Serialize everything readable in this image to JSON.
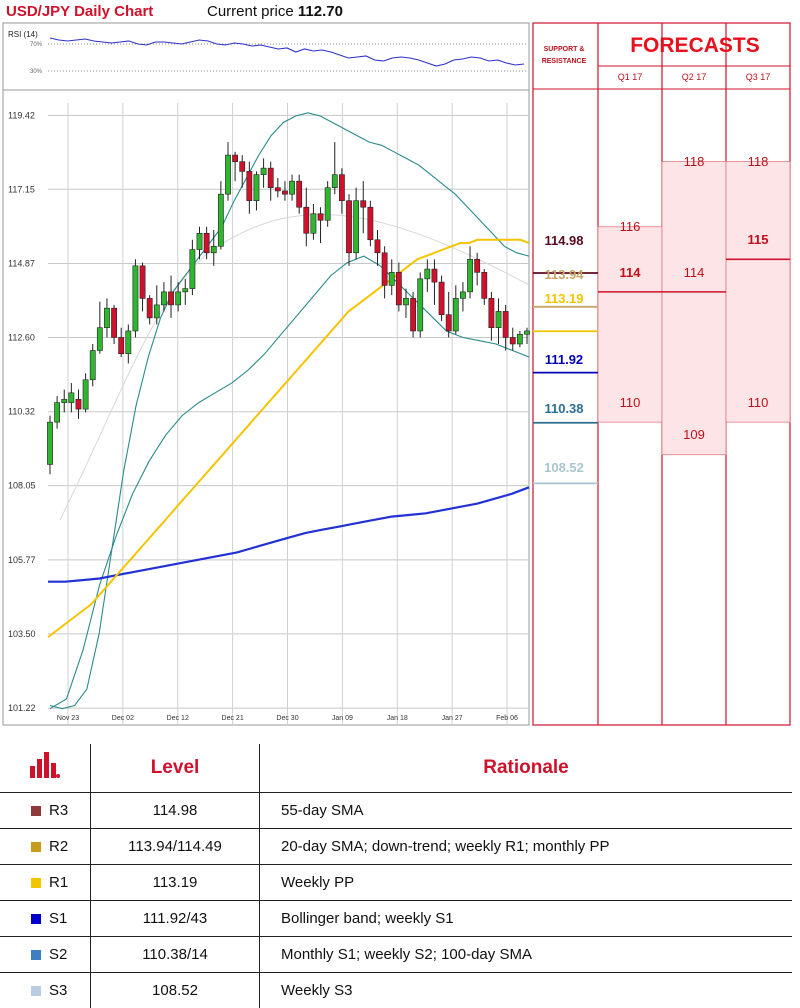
{
  "header": {
    "title": "USD/JPY Daily Chart",
    "price_label": "Current price",
    "price_value": "112.70"
  },
  "rsi": {
    "label": "RSI (14)",
    "upper_label": "70%",
    "lower_label": "30%"
  },
  "forecast": {
    "title": "FORECASTS",
    "sr_title_line1": "SUPPORT &",
    "sr_title_line2": "RESISTANCE",
    "quarters": [
      "Q1 17",
      "Q2 17",
      "Q3 17"
    ]
  },
  "levels": [
    {
      "value": "114.98",
      "color": "#5a0a1e"
    },
    {
      "value": "113.94",
      "color": "#c9a56a"
    },
    {
      "value": "113.19",
      "color": "#f5c400"
    },
    {
      "value": "111.92",
      "color": "#0000b5"
    },
    {
      "value": "110.38",
      "color": "#2b6f8f"
    },
    {
      "value": "108.52",
      "color": "#a9c6cf"
    }
  ],
  "forecast_values": {
    "q1": {
      "high": "116",
      "mid": "114",
      "low": "110"
    },
    "q2": {
      "high": "118",
      "mid": "114",
      "low": "109"
    },
    "q3": {
      "high": "118",
      "mid": "115",
      "low": "110"
    }
  },
  "chart_data": {
    "type": "candlestick",
    "title": "USD/JPY Daily Chart",
    "y_ticks": [
      119.42,
      117.15,
      114.87,
      112.6,
      110.32,
      108.05,
      105.77,
      103.5,
      101.22
    ],
    "ylim": [
      100.7,
      119.8
    ],
    "x_labels": [
      "Nov 23",
      "Dec 02",
      "Dec 12",
      "Dec 21",
      "Dec 30",
      "Jan 09",
      "Jan 18",
      "Jan 27",
      "Feb 06"
    ],
    "grid": true,
    "candles": [
      [
        108.7,
        110.0,
        108.4,
        110.2
      ],
      [
        110.0,
        110.6,
        109.8,
        110.8
      ],
      [
        110.6,
        110.7,
        110.3,
        111.0
      ],
      [
        110.6,
        110.9,
        110.3,
        111.2
      ],
      [
        110.7,
        110.4,
        110.1,
        111.0
      ],
      [
        110.4,
        111.3,
        110.3,
        111.5
      ],
      [
        111.3,
        112.2,
        111.1,
        112.4
      ],
      [
        112.2,
        112.9,
        112.1,
        113.7
      ],
      [
        112.9,
        113.5,
        112.6,
        113.8
      ],
      [
        113.5,
        112.6,
        112.4,
        113.6
      ],
      [
        112.6,
        112.1,
        112.0,
        112.9
      ],
      [
        112.1,
        112.8,
        111.8,
        113.0
      ],
      [
        112.8,
        114.8,
        112.6,
        115.0
      ],
      [
        114.8,
        113.8,
        113.4,
        114.9
      ],
      [
        113.8,
        113.2,
        113.0,
        113.9
      ],
      [
        113.2,
        113.6,
        113.0,
        114.2
      ],
      [
        113.6,
        114.0,
        113.4,
        114.3
      ],
      [
        114.0,
        113.6,
        113.2,
        114.5
      ],
      [
        113.6,
        114.0,
        113.4,
        114.3
      ],
      [
        114.0,
        114.1,
        113.6,
        114.4
      ],
      [
        114.1,
        115.3,
        113.9,
        115.6
      ],
      [
        115.3,
        115.8,
        115.0,
        116.0
      ],
      [
        115.8,
        115.2,
        115.0,
        116.0
      ],
      [
        115.2,
        115.4,
        114.8,
        115.9
      ],
      [
        115.4,
        117.0,
        115.3,
        117.4
      ],
      [
        117.0,
        118.2,
        116.8,
        118.6
      ],
      [
        118.2,
        118.0,
        117.4,
        118.3
      ],
      [
        118.0,
        117.7,
        117.2,
        118.2
      ],
      [
        117.7,
        116.8,
        116.4,
        118.0
      ],
      [
        116.8,
        117.6,
        116.5,
        117.7
      ],
      [
        117.6,
        117.8,
        117.2,
        118.1
      ],
      [
        117.8,
        117.2,
        116.8,
        118.0
      ],
      [
        117.2,
        117.1,
        116.9,
        117.5
      ],
      [
        117.1,
        117.0,
        116.8,
        117.4
      ],
      [
        117.0,
        117.4,
        116.8,
        117.6
      ],
      [
        117.4,
        116.6,
        116.4,
        117.6
      ],
      [
        116.6,
        115.8,
        115.4,
        117.2
      ],
      [
        115.8,
        116.4,
        115.6,
        116.7
      ],
      [
        116.4,
        116.2,
        115.5,
        116.6
      ],
      [
        116.2,
        117.2,
        116.0,
        117.4
      ],
      [
        117.2,
        117.6,
        117.0,
        118.6
      ],
      [
        117.6,
        116.8,
        116.4,
        117.8
      ],
      [
        116.8,
        115.2,
        114.8,
        117.0
      ],
      [
        115.2,
        116.8,
        115.0,
        117.2
      ],
      [
        116.8,
        116.6,
        115.8,
        117.4
      ],
      [
        116.6,
        115.6,
        115.4,
        116.8
      ],
      [
        115.6,
        115.2,
        114.8,
        115.9
      ],
      [
        115.2,
        114.2,
        113.8,
        115.4
      ],
      [
        114.2,
        114.6,
        113.9,
        115.0
      ],
      [
        114.6,
        113.6,
        113.4,
        114.9
      ],
      [
        113.6,
        113.8,
        113.2,
        114.1
      ],
      [
        113.8,
        112.8,
        112.6,
        114.0
      ],
      [
        112.8,
        114.4,
        112.6,
        114.6
      ],
      [
        114.4,
        114.7,
        114.0,
        115.0
      ],
      [
        114.7,
        114.3,
        113.6,
        115.0
      ],
      [
        114.3,
        113.3,
        113.1,
        114.5
      ],
      [
        113.3,
        112.8,
        112.6,
        114.0
      ],
      [
        112.8,
        113.8,
        112.7,
        114.2
      ],
      [
        113.8,
        114.0,
        113.4,
        114.3
      ],
      [
        114.0,
        115.0,
        113.8,
        115.4
      ],
      [
        115.0,
        114.6,
        114.2,
        115.2
      ],
      [
        114.6,
        113.8,
        113.6,
        114.7
      ],
      [
        113.8,
        112.9,
        112.5,
        114.0
      ],
      [
        112.9,
        113.4,
        112.4,
        113.8
      ],
      [
        113.4,
        112.6,
        112.2,
        113.6
      ],
      [
        112.6,
        112.4,
        112.2,
        112.9
      ],
      [
        112.4,
        112.7,
        112.3,
        112.8
      ],
      [
        112.7,
        112.8,
        112.4,
        112.9
      ]
    ],
    "sma_55": [
      103.4,
      103.6,
      103.8,
      104.0,
      104.2,
      104.4,
      104.7,
      105.0,
      105.3,
      105.6,
      105.9,
      106.2,
      106.5,
      106.8,
      107.1,
      107.4,
      107.7,
      108.0,
      108.3,
      108.6,
      108.9,
      109.2,
      109.5,
      109.8,
      110.1,
      110.4,
      110.7,
      111.0,
      111.3,
      111.6,
      111.9,
      112.2,
      112.5,
      112.8,
      113.1,
      113.4,
      113.6,
      113.8,
      114.0,
      114.2,
      114.4,
      114.6,
      114.8,
      115.0,
      115.1,
      115.2,
      115.3,
      115.4,
      115.5,
      115.5,
      115.6,
      115.6,
      115.6,
      115.6,
      115.6,
      115.6,
      115.5
    ],
    "sma_100": [
      105.1,
      105.1,
      105.15,
      105.2,
      105.3,
      105.4,
      105.5,
      105.6,
      105.7,
      105.8,
      105.9,
      106.0,
      106.15,
      106.3,
      106.45,
      106.6,
      106.7,
      106.8,
      106.9,
      107.0,
      107.1,
      107.15,
      107.2,
      107.3,
      107.4,
      107.5,
      107.65,
      107.8,
      108.0
    ],
    "bollinger_upper": [
      101.3,
      101.2,
      101.3,
      101.8,
      103.5,
      106.0,
      108.5,
      110.5,
      112.0,
      113.2,
      114.0,
      114.5,
      115.0,
      115.5,
      116.0,
      116.8,
      117.5,
      118.2,
      118.8,
      119.2,
      119.4,
      119.5,
      119.4,
      119.2,
      119.0,
      118.8,
      118.6,
      118.5,
      118.3,
      118.1,
      117.9,
      117.6,
      117.3,
      117.0,
      116.6,
      116.2,
      115.8,
      115.4,
      115.2,
      115.1
    ],
    "bollinger_lower": [
      101.2,
      101.5,
      103.0,
      105.0,
      106.5,
      107.8,
      108.8,
      109.6,
      110.2,
      110.6,
      110.9,
      111.2,
      111.6,
      112.1,
      112.7,
      113.3,
      113.9,
      114.5,
      114.9,
      115.1,
      114.8,
      114.3,
      113.8,
      113.3,
      112.8,
      112.6,
      112.5,
      112.4,
      112.2,
      112.0
    ]
  },
  "table": {
    "col_level": "Level",
    "col_rationale": "Rationale",
    "rows": [
      {
        "name": "R3",
        "color": "#8e3a3a",
        "level": "114.98",
        "rationale": "55-day SMA"
      },
      {
        "name": "R2",
        "color": "#c89b1a",
        "level": "113.94/114.49",
        "rationale": "20-day SMA; down-trend; weekly R1; monthly PP"
      },
      {
        "name": "R1",
        "color": "#f5c400",
        "level": "113.19",
        "rationale": "Weekly PP"
      },
      {
        "name": "S1",
        "color": "#0000c8",
        "level": "111.92/43",
        "rationale": "Bollinger band; weekly S1"
      },
      {
        "name": "S2",
        "color": "#3f7ec0",
        "level": "110.38/14",
        "rationale": "Monthly S1; weekly S2; 100-day SMA"
      },
      {
        "name": "S3",
        "color": "#b8cde3",
        "level": "108.52",
        "rationale": "Weekly S3"
      }
    ]
  }
}
